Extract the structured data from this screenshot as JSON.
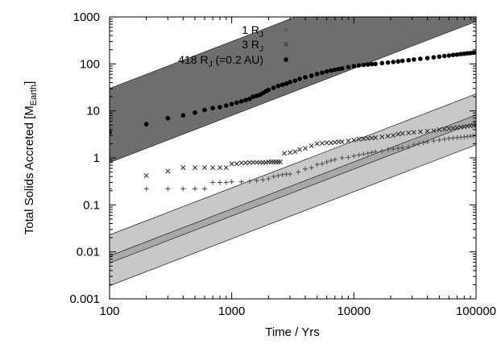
{
  "chart_data": {
    "type": "scatter",
    "xscale": "log",
    "yscale": "log",
    "xlim": [
      100,
      100000
    ],
    "ylim": [
      0.001,
      1000
    ],
    "xlabel": "Time / Yrs",
    "ylabel": {
      "main": "Total Solids Accreted [M",
      "sub": "Earth",
      "end": "]"
    },
    "xticks": [
      {
        "value": 100,
        "label": "100"
      },
      {
        "value": 1000,
        "label": "1000"
      },
      {
        "value": 10000,
        "label": "10000"
      },
      {
        "value": 100000,
        "label": "100000"
      }
    ],
    "yticks": [
      {
        "value": 0.001,
        "label": "0.001"
      },
      {
        "value": 0.01,
        "label": "0.01"
      },
      {
        "value": 0.1,
        "label": "0.1"
      },
      {
        "value": 1,
        "label": "1"
      },
      {
        "value": 10,
        "label": "10"
      },
      {
        "value": 100,
        "label": "100"
      },
      {
        "value": 1000,
        "label": "1000"
      }
    ],
    "legend_position": "top-right",
    "series": [
      {
        "name": "1 R_J",
        "legend_parts": {
          "prefix": "1 R",
          "sub": "J",
          "suffix": ""
        },
        "marker": "plus",
        "color": "#555555",
        "points": [
          [
            100,
            0.22
          ],
          [
            200,
            0.22
          ],
          [
            300,
            0.22
          ],
          [
            400,
            0.22
          ],
          [
            500,
            0.22
          ],
          [
            600,
            0.22
          ],
          [
            700,
            0.3
          ],
          [
            800,
            0.3
          ],
          [
            900,
            0.3
          ],
          [
            1000,
            0.31
          ],
          [
            1200,
            0.31
          ],
          [
            1400,
            0.32
          ],
          [
            1600,
            0.33
          ],
          [
            1800,
            0.34
          ],
          [
            2000,
            0.36
          ],
          [
            2200,
            0.4
          ],
          [
            2400,
            0.42
          ],
          [
            2600,
            0.44
          ],
          [
            2800,
            0.45
          ],
          [
            3000,
            0.45
          ],
          [
            3500,
            0.5
          ],
          [
            4000,
            0.58
          ],
          [
            4500,
            0.62
          ],
          [
            5000,
            0.72
          ],
          [
            5500,
            0.75
          ],
          [
            6000,
            0.82
          ],
          [
            6500,
            0.88
          ],
          [
            7000,
            0.92
          ],
          [
            8000,
            1.0
          ],
          [
            9000,
            1.02
          ],
          [
            10000,
            1.1
          ],
          [
            11000,
            1.15
          ],
          [
            12000,
            1.2
          ],
          [
            13000,
            1.25
          ],
          [
            14000,
            1.3
          ],
          [
            15000,
            1.35
          ],
          [
            17000,
            1.4
          ],
          [
            19000,
            1.5
          ],
          [
            21000,
            1.55
          ],
          [
            23000,
            1.6
          ],
          [
            25000,
            1.65
          ],
          [
            28000,
            1.7
          ],
          [
            31000,
            1.9
          ],
          [
            34000,
            2.0
          ],
          [
            37000,
            2.1
          ],
          [
            40000,
            2.2
          ],
          [
            45000,
            2.3
          ],
          [
            50000,
            2.4
          ],
          [
            55000,
            2.5
          ],
          [
            60000,
            2.6
          ],
          [
            65000,
            2.65
          ],
          [
            70000,
            2.7
          ],
          [
            75000,
            2.75
          ],
          [
            80000,
            2.8
          ],
          [
            85000,
            2.85
          ],
          [
            90000,
            2.9
          ],
          [
            95000,
            2.95
          ],
          [
            100000,
            3.0
          ]
        ]
      },
      {
        "name": "3 R_J",
        "legend_parts": {
          "prefix": "3 R",
          "sub": "J",
          "suffix": ""
        },
        "marker": "cross",
        "color": "#333333",
        "points": [
          [
            200,
            0.42
          ],
          [
            300,
            0.52
          ],
          [
            400,
            0.62
          ],
          [
            500,
            0.62
          ],
          [
            600,
            0.62
          ],
          [
            700,
            0.62
          ],
          [
            800,
            0.62
          ],
          [
            900,
            0.62
          ],
          [
            1000,
            0.75
          ],
          [
            1100,
            0.75
          ],
          [
            1200,
            0.78
          ],
          [
            1300,
            0.78
          ],
          [
            1400,
            0.8
          ],
          [
            1500,
            0.8
          ],
          [
            1600,
            0.8
          ],
          [
            1700,
            0.8
          ],
          [
            1800,
            0.8
          ],
          [
            1900,
            0.8
          ],
          [
            2000,
            0.82
          ],
          [
            2100,
            0.82
          ],
          [
            2200,
            0.82
          ],
          [
            2300,
            0.82
          ],
          [
            2400,
            0.82
          ],
          [
            2500,
            0.82
          ],
          [
            2700,
            1.25
          ],
          [
            3000,
            1.3
          ],
          [
            3300,
            1.35
          ],
          [
            3600,
            1.5
          ],
          [
            4000,
            1.6
          ],
          [
            4500,
            1.8
          ],
          [
            5000,
            2.0
          ],
          [
            5500,
            2.05
          ],
          [
            6000,
            2.1
          ],
          [
            6500,
            2.1
          ],
          [
            7000,
            2.15
          ],
          [
            7500,
            2.2
          ],
          [
            8000,
            2.2
          ],
          [
            9000,
            2.3
          ],
          [
            10000,
            2.4
          ],
          [
            11000,
            2.5
          ],
          [
            12000,
            2.55
          ],
          [
            13000,
            2.6
          ],
          [
            14000,
            2.65
          ],
          [
            15000,
            2.7
          ],
          [
            17000,
            2.8
          ],
          [
            19000,
            2.9
          ],
          [
            21000,
            3.0
          ],
          [
            23000,
            3.2
          ],
          [
            25000,
            3.3
          ],
          [
            28000,
            3.4
          ],
          [
            31000,
            3.5
          ],
          [
            35000,
            3.6
          ],
          [
            40000,
            3.7
          ],
          [
            45000,
            3.8
          ],
          [
            50000,
            4.0
          ],
          [
            55000,
            4.1
          ],
          [
            60000,
            4.2
          ],
          [
            65000,
            4.3
          ],
          [
            70000,
            4.4
          ],
          [
            75000,
            4.5
          ],
          [
            80000,
            4.6
          ],
          [
            85000,
            4.7
          ],
          [
            90000,
            4.8
          ],
          [
            95000,
            4.9
          ],
          [
            100000,
            5.0
          ]
        ]
      },
      {
        "name": "418 R_J (=0.2 AU)",
        "legend_parts": {
          "prefix": "418 R",
          "sub": "J",
          "suffix": " (=0.2 AU)"
        },
        "marker": "dot",
        "color": "#000000",
        "points": [
          [
            100,
            3.5
          ],
          [
            200,
            5.2
          ],
          [
            300,
            7.0
          ],
          [
            400,
            8.0
          ],
          [
            500,
            9.2
          ],
          [
            600,
            10.5
          ],
          [
            700,
            11.5
          ],
          [
            800,
            12.0
          ],
          [
            900,
            13.0
          ],
          [
            1000,
            14.0
          ],
          [
            1100,
            15.0
          ],
          [
            1200,
            16.0
          ],
          [
            1300,
            17.0
          ],
          [
            1400,
            18.0
          ],
          [
            1500,
            20.0
          ],
          [
            1600,
            21.0
          ],
          [
            1700,
            22.0
          ],
          [
            1800,
            24.0
          ],
          [
            1900,
            26.0
          ],
          [
            2000,
            28.0
          ],
          [
            2200,
            31.0
          ],
          [
            2400,
            34.0
          ],
          [
            2600,
            36.0
          ],
          [
            2800,
            38.0
          ],
          [
            3000,
            41.0
          ],
          [
            3300,
            44.0
          ],
          [
            3600,
            48.0
          ],
          [
            4000,
            52.0
          ],
          [
            4500,
            56.0
          ],
          [
            5000,
            61.0
          ],
          [
            5500,
            65.0
          ],
          [
            6000,
            69.0
          ],
          [
            6500,
            72.0
          ],
          [
            7000,
            75.0
          ],
          [
            7500,
            78.0
          ],
          [
            8000,
            80.0
          ],
          [
            9000,
            85.0
          ],
          [
            10000,
            90.0
          ],
          [
            11000,
            93.0
          ],
          [
            12000,
            95.0
          ],
          [
            13000,
            97.0
          ],
          [
            14000,
            99.0
          ],
          [
            15000,
            100.0
          ],
          [
            17000,
            104.0
          ],
          [
            19000,
            107.0
          ],
          [
            21000,
            110.0
          ],
          [
            23000,
            113.0
          ],
          [
            25000,
            116.0
          ],
          [
            28000,
            120.0
          ],
          [
            31000,
            124.0
          ],
          [
            35000,
            128.0
          ],
          [
            40000,
            133.0
          ],
          [
            45000,
            138.0
          ],
          [
            50000,
            143.0
          ],
          [
            55000,
            147.0
          ],
          [
            60000,
            151.0
          ],
          [
            65000,
            155.0
          ],
          [
            70000,
            158.0
          ],
          [
            75000,
            162.0
          ],
          [
            80000,
            165.0
          ],
          [
            85000,
            168.0
          ],
          [
            90000,
            170.0
          ],
          [
            95000,
            173.0
          ],
          [
            100000,
            175.0
          ]
        ]
      }
    ],
    "bands": [
      {
        "name": "upper-band",
        "fill": "#6e6e6e",
        "lower": [
          [
            100,
            0.8
          ],
          [
            100000,
            800
          ]
        ],
        "upper": [
          [
            100,
            30
          ],
          [
            100000,
            30000
          ]
        ]
      },
      {
        "name": "lower-band-outer",
        "fill": "#c8c8c8",
        "lower": [
          [
            100,
            0.0019
          ],
          [
            100000,
            1.9
          ]
        ],
        "upper": [
          [
            100,
            0.023
          ],
          [
            100000,
            23
          ]
        ]
      },
      {
        "name": "lower-band-inner",
        "fill": "#a8a8a8",
        "lower": [
          [
            100,
            0.0058
          ],
          [
            100000,
            5.8
          ]
        ],
        "upper": [
          [
            100,
            0.0082
          ],
          [
            100000,
            8.2
          ]
        ]
      }
    ]
  }
}
